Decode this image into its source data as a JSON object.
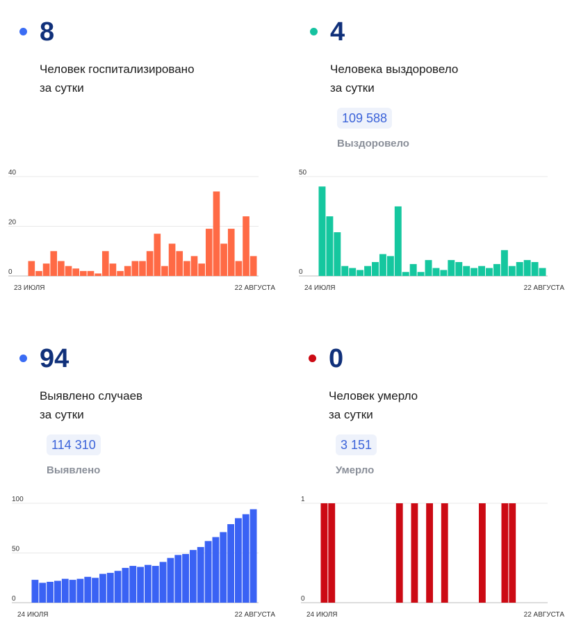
{
  "panels": [
    {
      "number": "8",
      "color": "#3a6cf4",
      "label_line1": "Человек госпитализировано",
      "label_line2": "за сутки",
      "total": "",
      "total_label": ""
    },
    {
      "number": "4",
      "color": "#15c2a0",
      "label_line1": "Человека выздоровело",
      "label_line2": "за сутки",
      "total": "109 588",
      "total_label": "Выздоровело"
    },
    {
      "number": "94",
      "color": "#3a6cf4",
      "label_line1": "Выявлено случаев",
      "label_line2": "за сутки",
      "total": "114 310",
      "total_label": "Выявлено"
    },
    {
      "number": "0",
      "color": "#cc0a14",
      "label_line1": "Человек умерло",
      "label_line2": "за сутки",
      "total": "3 151",
      "total_label": "Умерло"
    }
  ],
  "chart_data": [
    {
      "type": "bar",
      "color": "#ff6a45",
      "x_start": "23 ИЮЛЯ",
      "x_end": "22 АВГУСТА",
      "yticks": [
        0,
        20,
        40
      ],
      "ylim": [
        0,
        40
      ],
      "values": [
        6,
        2,
        5,
        10,
        6,
        4,
        3,
        2,
        2,
        1,
        10,
        5,
        2,
        4,
        6,
        6,
        10,
        17,
        4,
        13,
        10,
        6,
        8,
        5,
        19,
        34,
        13,
        19,
        6,
        24,
        8
      ]
    },
    {
      "type": "bar",
      "color": "#15c79f",
      "x_start": "24 ИЮЛЯ",
      "x_end": "22 АВГУСТА",
      "yticks": [
        0,
        50
      ],
      "ylim": [
        0,
        50
      ],
      "values": [
        45,
        30,
        22,
        5,
        4,
        3,
        5,
        7,
        11,
        10,
        35,
        2,
        6,
        2,
        8,
        4,
        3,
        8,
        7,
        5,
        4,
        5,
        4,
        6,
        13,
        5,
        7,
        8,
        7,
        4
      ]
    },
    {
      "type": "bar",
      "color": "#3a62f4",
      "x_start": "24 ИЮЛЯ",
      "x_end": "22 АВГУСТА",
      "yticks": [
        0,
        50,
        100
      ],
      "ylim": [
        0,
        100
      ],
      "values": [
        23,
        20,
        21,
        22,
        24,
        23,
        24,
        26,
        25,
        29,
        30,
        32,
        35,
        37,
        36,
        38,
        37,
        41,
        45,
        48,
        49,
        53,
        56,
        62,
        66,
        71,
        79,
        85,
        89,
        94
      ]
    },
    {
      "type": "bar",
      "color": "#cc0a14",
      "x_start": "24 ИЮЛЯ",
      "x_end": "22 АВГУСТА",
      "yticks": [
        0,
        1
      ],
      "ylim": [
        0,
        1
      ],
      "values": [
        1,
        1,
        0,
        0,
        0,
        0,
        0,
        0,
        0,
        0,
        1,
        0,
        1,
        0,
        1,
        0,
        1,
        0,
        0,
        0,
        0,
        1,
        0,
        0,
        1,
        1,
        0,
        0,
        0,
        0
      ]
    }
  ]
}
